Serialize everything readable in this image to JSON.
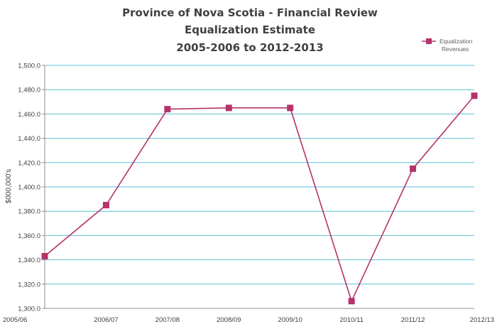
{
  "chart_data": {
    "type": "line",
    "title_lines": [
      "Province of Nova Scotia - Financial Review",
      "Equalization Estimate",
      "2005-2006 to 2012-2013"
    ],
    "xlabel": "",
    "ylabel": "$000,000's",
    "categories": [
      "2005/06",
      "2006/07",
      "2007/08",
      "2008/09",
      "2009/10",
      "2010/11",
      "2011/12",
      "2012/13"
    ],
    "series": [
      {
        "name": "Equalization Revenues",
        "values": [
          1343,
          1385,
          1464,
          1465,
          1465,
          1306,
          1415,
          1475
        ]
      }
    ],
    "ylim": [
      1300,
      1500
    ],
    "yticks": [
      1300,
      1320,
      1340,
      1360,
      1380,
      1400,
      1420,
      1440,
      1460,
      1480,
      1500
    ],
    "ytick_labels": [
      "1,300.0",
      "1,320.0",
      "1,340.0",
      "1,360.0",
      "1,380.0",
      "1,400.0",
      "1,420.0",
      "1,440.0",
      "1,460.0",
      "1,480.0",
      "1,500.0"
    ],
    "grid": true,
    "legend_position": "top-right",
    "legend_lines": [
      "Equalization",
      "Revenues"
    ],
    "colors": {
      "series": "#b5336b",
      "grid": "#5bbfd6",
      "axis": "#8c8c8c",
      "text": "#404040"
    }
  }
}
